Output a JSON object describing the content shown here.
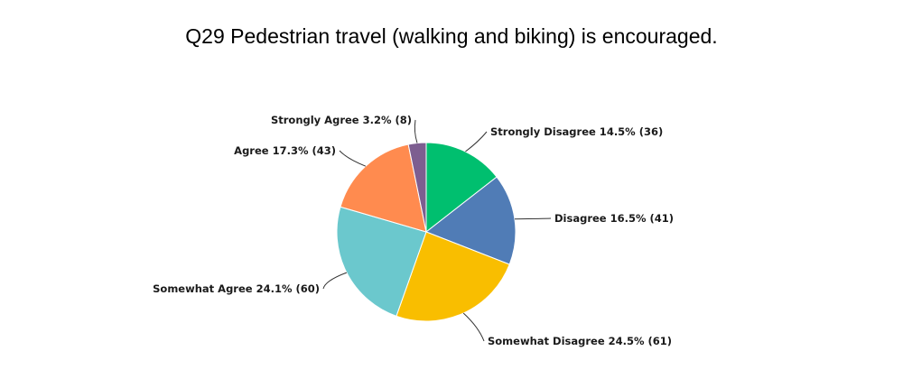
{
  "chart_data": {
    "type": "pie",
    "title": "Q29 Pedestrian travel (walking and biking) is encouraged.",
    "slices": [
      {
        "label": "Strongly Disagree",
        "percent": "14.5%",
        "count": 36,
        "color": "#00bf6f",
        "text": "Strongly Disagree 14.5% (36)"
      },
      {
        "label": "Disagree",
        "percent": "16.5%",
        "count": 41,
        "color": "#507cb6",
        "text": "Disagree 16.5% (41)"
      },
      {
        "label": "Somewhat Disagree",
        "percent": "24.5%",
        "count": 61,
        "color": "#f9be00",
        "text": "Somewhat Disagree 24.5% (61)"
      },
      {
        "label": "Somewhat Agree",
        "percent": "24.1%",
        "count": 60,
        "color": "#6bc8cd",
        "text": "Somewhat Agree 24.1% (60)"
      },
      {
        "label": "Agree",
        "percent": "17.3%",
        "count": 43,
        "color": "#ff8b4f",
        "text": "Agree 17.3% (43)"
      },
      {
        "label": "Strongly Agree",
        "percent": "3.2%",
        "count": 8,
        "color": "#7d5e90",
        "text": "Strongly Agree 3.2% (8)"
      }
    ],
    "start_angle": "top",
    "direction": "clockwise",
    "legend": "none"
  }
}
